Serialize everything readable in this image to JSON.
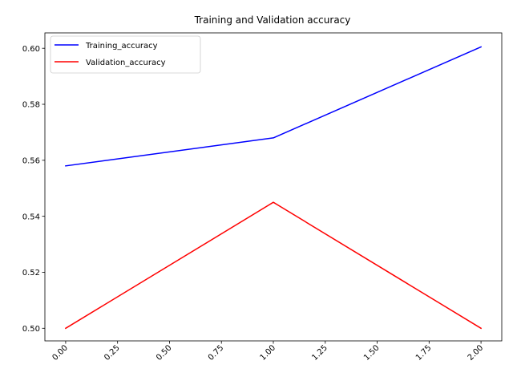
{
  "chart_data": {
    "type": "line",
    "title": "Training and Validation accuracy",
    "xlabel": "",
    "ylabel": "",
    "x": [
      0,
      1,
      2
    ],
    "series": [
      {
        "name": "Training_accuracy",
        "color": "#0000ff",
        "values": [
          0.558,
          0.568,
          0.6005
        ]
      },
      {
        "name": "Validation_accuracy",
        "color": "#ff0000",
        "values": [
          0.5,
          0.545,
          0.5
        ]
      }
    ],
    "xlim": [
      -0.1,
      2.1
    ],
    "ylim": [
      0.4955,
      0.6055
    ],
    "x_ticks": [
      "0.00",
      "0.25",
      "0.50",
      "0.75",
      "1.00",
      "1.25",
      "1.50",
      "1.75",
      "2.00"
    ],
    "y_ticks": [
      "0.50",
      "0.52",
      "0.54",
      "0.56",
      "0.58",
      "0.60"
    ],
    "x_tick_rotation": 45,
    "grid": false,
    "legend": "upper left"
  }
}
